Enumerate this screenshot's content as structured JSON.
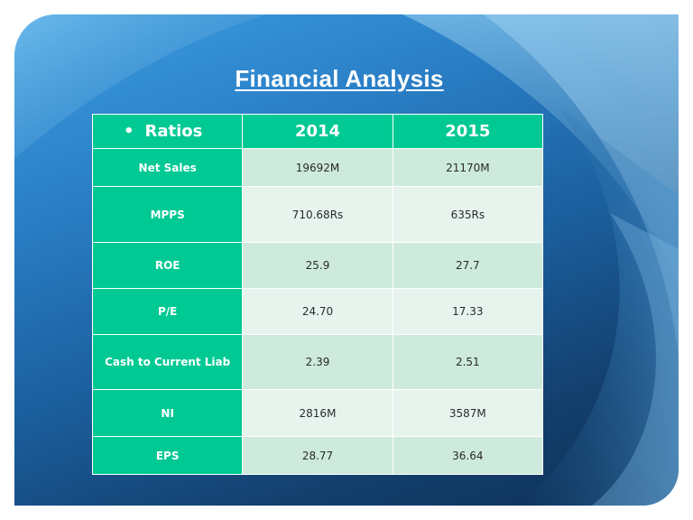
{
  "slide": {
    "title": "Financial Analysis",
    "background_colors": [
      "#3d9ee0",
      "#1b5f9e",
      "#0f3157"
    ],
    "accent_color": "#00c993"
  },
  "table": {
    "headers": {
      "bullet": "•",
      "ratios": "Ratios",
      "year1": "2014",
      "year2": "2015"
    },
    "rows": [
      {
        "label": "Net Sales",
        "v2014": "19692M",
        "v2015": "21170M"
      },
      {
        "label": "MPPS",
        "v2014": "710.68Rs",
        "v2015": "635Rs"
      },
      {
        "label": "ROE",
        "v2014": "25.9",
        "v2015": "27.7"
      },
      {
        "label": "P/E",
        "v2014": "24.70",
        "v2015": "17.33"
      },
      {
        "label": "Cash to Current Liab",
        "v2014": "2.39",
        "v2015": "2.51"
      },
      {
        "label": "NI",
        "v2014": "2816M",
        "v2015": "3587M"
      },
      {
        "label": "EPS",
        "v2014": "28.77",
        "v2015": "36.64"
      }
    ]
  }
}
